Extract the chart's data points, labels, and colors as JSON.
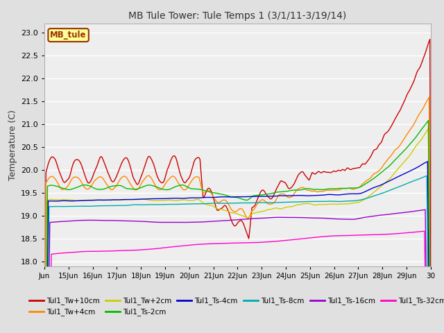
{
  "title": "MB Tule Tower: Tule Temps 1 (3/1/11-3/19/14)",
  "ylabel": "Temperature (C)",
  "ylim": [
    17.9,
    23.2
  ],
  "yticks": [
    18.0,
    18.5,
    19.0,
    19.5,
    20.0,
    20.5,
    21.0,
    21.5,
    22.0,
    22.5,
    23.0
  ],
  "xlabel_ticks": [
    "Jun",
    "15Jun",
    "16Jun",
    "17Jun",
    "18Jun",
    "19Jun",
    "20Jun",
    "21Jun",
    "22Jun",
    "23Jun",
    "24Jun",
    "25Jun",
    "26Jun",
    "27Jun",
    "28Jun",
    "29Jun",
    "30"
  ],
  "background_color": "#e0e0e0",
  "plot_bg_color": "#eeeeee",
  "legend_box_color": "#ffff99",
  "legend_box_edge": "#993300",
  "legend_box_text": "#993300",
  "legend_box_label": "MB_tule",
  "series": [
    {
      "label": "Tul1_Tw+10cm",
      "color": "#cc0000"
    },
    {
      "label": "Tul1_Tw+4cm",
      "color": "#ff8800"
    },
    {
      "label": "Tul1_Tw+2cm",
      "color": "#cccc00"
    },
    {
      "label": "Tul1_Ts-2cm",
      "color": "#00bb00"
    },
    {
      "label": "Tul1_Ts-4cm",
      "color": "#0000cc"
    },
    {
      "label": "Tul1_Ts-8cm",
      "color": "#00aaaa"
    },
    {
      "label": "Tul1_Ts-16cm",
      "color": "#9900cc"
    },
    {
      "label": "Tul1_Ts-32cm",
      "color": "#ff00cc"
    }
  ]
}
